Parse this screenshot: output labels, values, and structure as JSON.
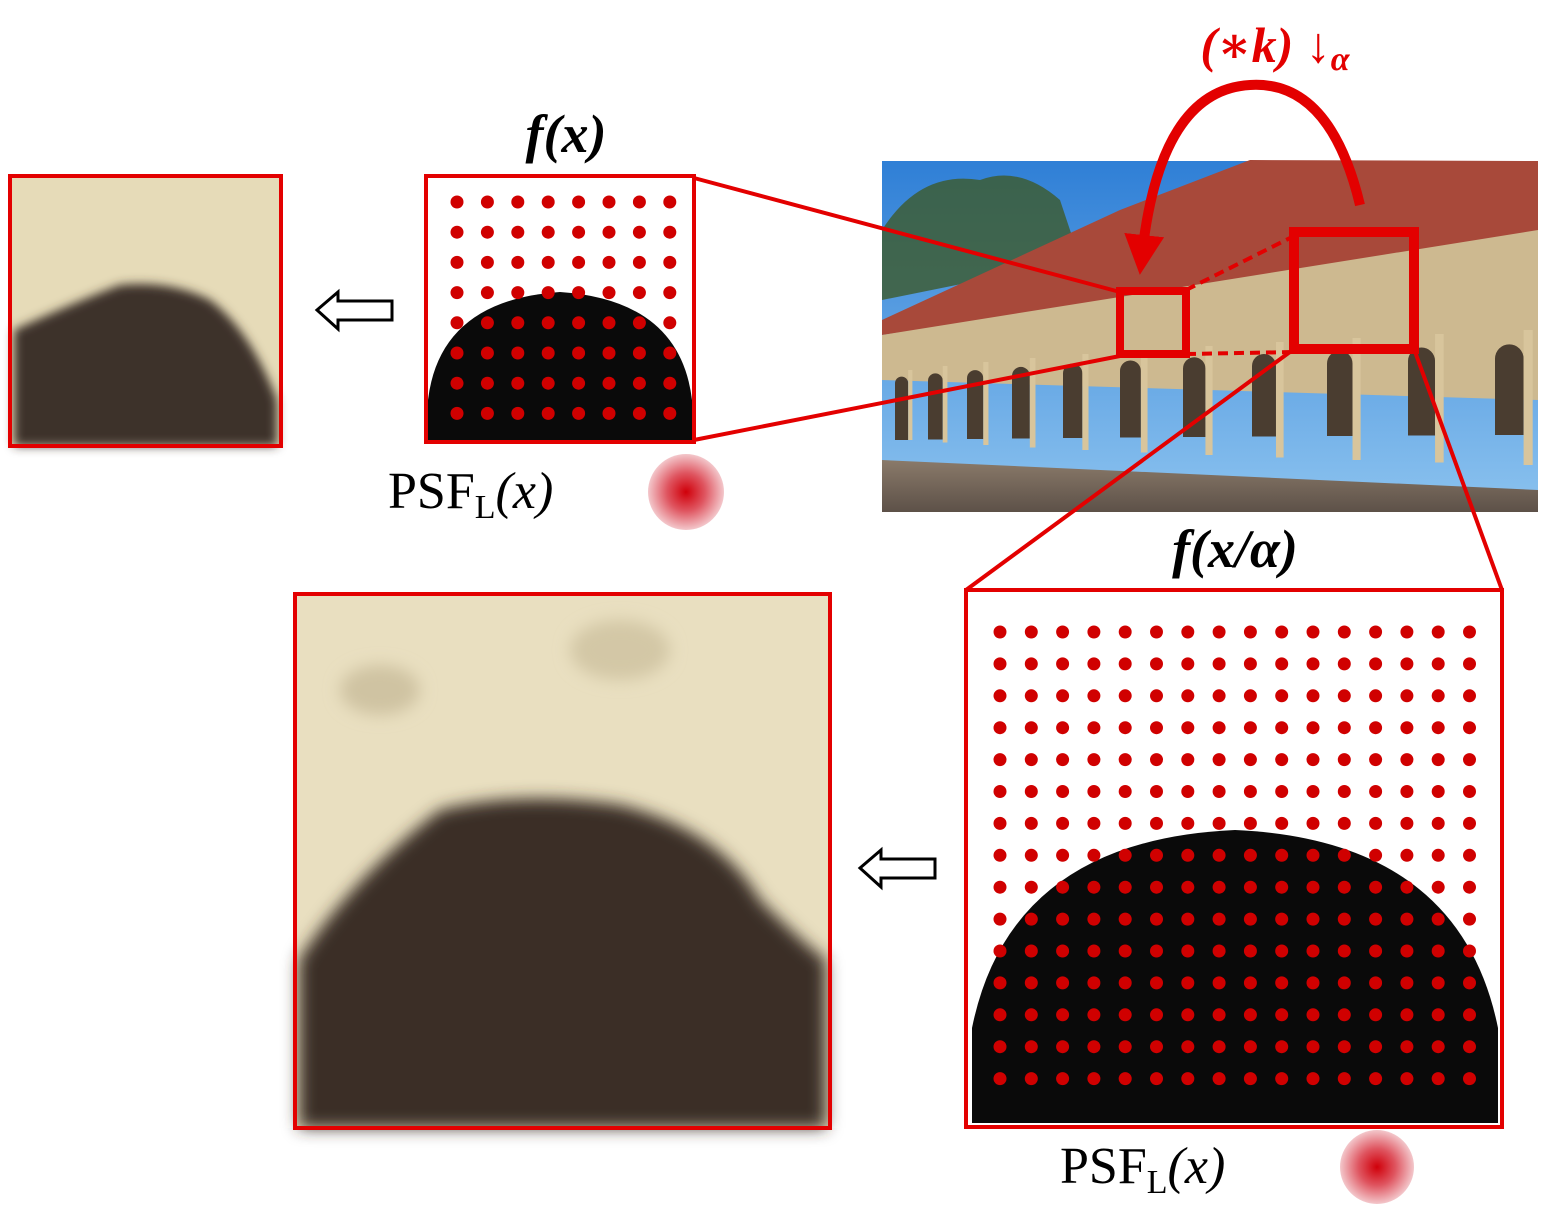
{
  "labels": {
    "operator": {
      "text": "(∗k) ↓",
      "subscript": "α"
    },
    "small_patch_title": "f(x)",
    "large_patch_title": "f(x/α)",
    "psf_small": {
      "text": "PSF",
      "subscript": "L",
      "argument": "(x)"
    },
    "psf_large": {
      "text": "PSF",
      "subscript": "L",
      "argument": "(x)"
    }
  }
}
